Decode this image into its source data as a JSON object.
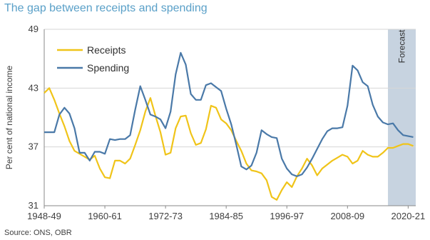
{
  "title": "The gap between receipts and spending",
  "source": "Source: ONS, OBR",
  "colors": {
    "receipts": "#f0c419",
    "spending": "#4a79a8",
    "forecast_band": "#c7d3e0",
    "axis": "#8a8a8a",
    "title": "#5aa0c8"
  },
  "chart_data": {
    "type": "line",
    "title": "The gap between receipts and spending",
    "xlabel": "",
    "ylabel": "Per cent of national income",
    "ylim": [
      31,
      49
    ],
    "yticks": [
      "31",
      "37",
      "43",
      "49"
    ],
    "xticks": [
      "1948-49",
      "1960-61",
      "1972-73",
      "1984-85",
      "1996-97",
      "2008-09",
      "2020-21"
    ],
    "grid": true,
    "legend_position": "top-left",
    "forecast_label": "Forecast",
    "forecast_start": 2016,
    "x": [
      1948,
      1949,
      1950,
      1951,
      1952,
      1953,
      1954,
      1955,
      1956,
      1957,
      1958,
      1959,
      1960,
      1961,
      1962,
      1963,
      1964,
      1965,
      1966,
      1967,
      1968,
      1969,
      1970,
      1971,
      1972,
      1973,
      1974,
      1975,
      1976,
      1977,
      1978,
      1979,
      1980,
      1981,
      1982,
      1983,
      1984,
      1985,
      1986,
      1987,
      1988,
      1989,
      1990,
      1991,
      1992,
      1993,
      1994,
      1995,
      1996,
      1997,
      1998,
      1999,
      2000,
      2001,
      2002,
      2003,
      2004,
      2005,
      2006,
      2007,
      2008,
      2009,
      2010,
      2011,
      2012,
      2013,
      2014,
      2015,
      2016,
      2017,
      2018,
      2019,
      2020,
      2021
    ],
    "series": [
      {
        "name": "Receipts",
        "values": [
          42.5,
          43.0,
          41.8,
          40.4,
          39.1,
          37.6,
          36.6,
          36.3,
          36.0,
          35.7,
          36.1,
          34.8,
          33.9,
          33.8,
          35.6,
          35.6,
          35.3,
          35.8,
          37.2,
          38.7,
          40.6,
          42.0,
          40.2,
          38.5,
          36.2,
          36.4,
          38.9,
          40.1,
          40.2,
          38.4,
          37.2,
          37.4,
          38.8,
          41.2,
          41.0,
          39.8,
          39.4,
          38.7,
          37.6,
          36.6,
          35.3,
          34.6,
          34.5,
          34.3,
          33.6,
          31.9,
          31.6,
          32.6,
          33.4,
          32.9,
          34.0,
          34.8,
          35.8,
          35.1,
          34.1,
          34.8,
          35.2,
          35.6,
          35.9,
          36.2,
          36.0,
          35.3,
          35.6,
          36.6,
          36.2,
          36.0,
          36.0,
          36.4,
          36.9,
          36.9,
          37.1,
          37.3,
          37.3,
          37.1
        ]
      },
      {
        "name": "Spending",
        "values": [
          38.5,
          38.5,
          38.5,
          40.3,
          41.0,
          40.4,
          38.9,
          36.4,
          36.4,
          35.6,
          36.5,
          36.5,
          36.3,
          37.8,
          37.7,
          37.8,
          37.8,
          38.2,
          40.8,
          43.2,
          41.8,
          40.3,
          40.1,
          39.8,
          38.9,
          40.6,
          44.4,
          46.6,
          45.4,
          42.4,
          41.8,
          41.8,
          43.3,
          43.5,
          43.1,
          42.7,
          40.9,
          39.3,
          37.2,
          35.0,
          34.7,
          35.1,
          36.4,
          38.7,
          38.3,
          38.0,
          37.9,
          35.8,
          34.8,
          34.2,
          34.0,
          34.2,
          34.9,
          35.8,
          36.8,
          37.8,
          38.6,
          38.9,
          38.9,
          39.0,
          41.2,
          45.3,
          44.8,
          43.6,
          43.2,
          41.3,
          40.1,
          39.5,
          39.3,
          39.4,
          38.7,
          38.2,
          38.1,
          38.0
        ]
      }
    ]
  }
}
